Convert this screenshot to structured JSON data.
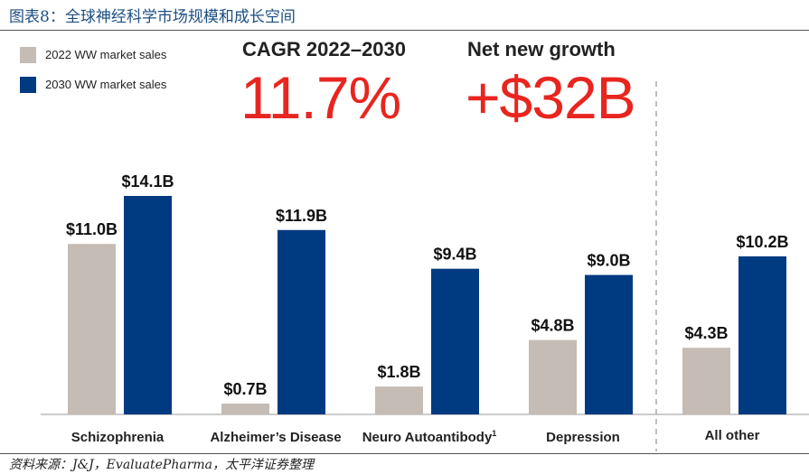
{
  "figure_title": "图表8：全球神经科学市场规模和成长空间",
  "source": "资料来源：J&J，EvaluatePharma，太平洋证券整理",
  "stats": {
    "cagr_label": "CAGR 2022–2030",
    "cagr_value": "11.7%",
    "growth_label": "Net new growth",
    "growth_value": "+$32B"
  },
  "colors": {
    "s2022": "#c4bcb5",
    "s2030": "#003a80",
    "accent": "#e8251f"
  },
  "chart_data": {
    "type": "bar",
    "categories": [
      "Schizophrenia",
      "Alzheimer’s Disease",
      "Neuro Autoantibody",
      "Depression",
      "All other"
    ],
    "category_superscripts": [
      "",
      "",
      "1",
      "",
      ""
    ],
    "unit": "$B",
    "series": [
      {
        "name": "2022 WW market sales",
        "values": [
          11.0,
          0.7,
          1.8,
          4.8,
          4.3
        ],
        "labels": [
          "$11.0B",
          "$0.7B",
          "$1.8B",
          "$4.8B",
          "$4.3B"
        ]
      },
      {
        "name": "2030 WW market sales",
        "values": [
          14.1,
          11.9,
          9.4,
          9.0,
          10.2
        ],
        "labels": [
          "$14.1B",
          "$11.9B",
          "$9.4B",
          "$9.0B",
          "$10.2B"
        ]
      }
    ],
    "ylim": [
      0,
      14.1
    ],
    "grid": false,
    "legend": "top-left"
  }
}
